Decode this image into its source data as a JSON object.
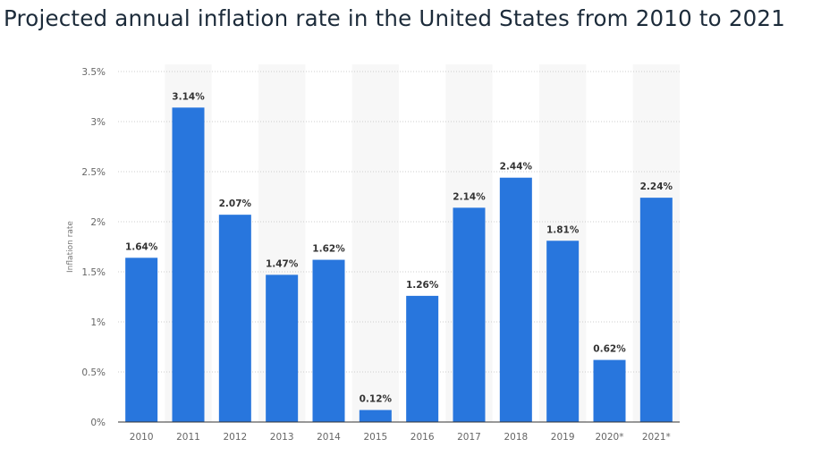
{
  "title": "Projected annual inflation rate in the United States from 2010 to 2021",
  "colors": {
    "bar": "#2876dd",
    "band": "#f7f7f7",
    "grid": "#cccccc",
    "axis": "#333333"
  },
  "chart_data": {
    "type": "bar",
    "title": "Projected annual inflation rate in the United States from 2010 to 2021",
    "xlabel": "",
    "ylabel": "Inflation rate",
    "categories": [
      "2010",
      "2011",
      "2012",
      "2013",
      "2014",
      "2015",
      "2016",
      "2017",
      "2018",
      "2019",
      "2020*",
      "2021*"
    ],
    "values": [
      1.64,
      3.14,
      2.07,
      1.47,
      1.62,
      0.12,
      1.26,
      2.14,
      2.44,
      1.81,
      0.62,
      2.24
    ],
    "data_labels": [
      "1.64%",
      "3.14%",
      "2.07%",
      "1.47%",
      "1.62%",
      "0.12%",
      "1.26%",
      "2.14%",
      "2.44%",
      "1.81%",
      "0.62%",
      "2.24%"
    ],
    "y_ticks": [
      0,
      0.5,
      1,
      1.5,
      2,
      2.5,
      3,
      3.5
    ],
    "y_tick_labels": [
      "0%",
      "0.5%",
      "1%",
      "1.5%",
      "2%",
      "2.5%",
      "3%",
      "3.5%"
    ],
    "ylim": [
      0,
      3.5
    ],
    "grid": true,
    "legend": "none"
  }
}
